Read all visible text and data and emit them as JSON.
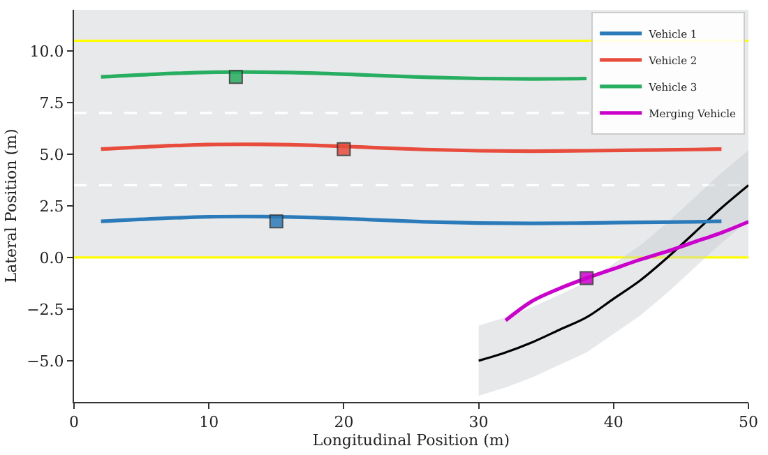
{
  "chart_data": {
    "type": "line",
    "xlabel": "Longitudinal Position (m)",
    "ylabel": "Lateral Position (m)",
    "xlim": [
      0,
      50
    ],
    "ylim": [
      -7,
      12
    ],
    "xticks": [
      0,
      10,
      20,
      30,
      40,
      50
    ],
    "yticks": [
      {
        "value": -5,
        "label": "−5.0"
      },
      {
        "value": -2.5,
        "label": "−2.5"
      },
      {
        "value": 0,
        "label": "0.0"
      },
      {
        "value": 2.5,
        "label": "2.5"
      },
      {
        "value": 5,
        "label": "5.0"
      },
      {
        "value": 7.5,
        "label": "7.5"
      },
      {
        "value": 10,
        "label": "10.0"
      }
    ],
    "grid": false,
    "legend": "top right",
    "line_style": "solid",
    "marker": "none",
    "bands": [
      {
        "axis": "y",
        "from": 0,
        "to": 12,
        "color": "#e8e9eb"
      }
    ],
    "ref_lines": [
      {
        "axis": "y",
        "value": 0,
        "color": "#ffff00",
        "line_style": "solid"
      },
      {
        "axis": "y",
        "value": 10.5,
        "color": "#ffff00",
        "line_style": "solid"
      },
      {
        "axis": "y",
        "value": 3.5,
        "color": "#ffffff",
        "line_style": "dashed"
      },
      {
        "axis": "y",
        "value": 7,
        "color": "#ffffff",
        "line_style": "dashed"
      }
    ],
    "series": [
      {
        "color": "#000000",
        "x": [
          30,
          32,
          34,
          36,
          38,
          40,
          42,
          44,
          46,
          48,
          50
        ],
        "values": [
          -5.0,
          -4.6,
          -4.1,
          -3.5,
          -2.9,
          -2.0,
          -1.1,
          0.0,
          1.2,
          2.4,
          3.5
        ],
        "lower": [
          -6.7,
          -6.3,
          -5.8,
          -5.2,
          -4.6,
          -3.7,
          -2.8,
          -1.7,
          -0.5,
          0.7,
          1.8
        ],
        "upper": [
          -3.3,
          -2.9,
          -2.4,
          -1.8,
          -1.2,
          -0.3,
          0.6,
          1.7,
          2.9,
          4.1,
          5.2
        ]
      },
      {
        "name": "Vehicle 1",
        "color": "#2b7bba",
        "x": [
          2,
          6,
          10,
          14,
          18,
          22,
          26,
          30,
          34,
          38,
          42,
          46,
          48
        ],
        "values": [
          1.75,
          1.88,
          1.97,
          1.98,
          1.93,
          1.83,
          1.73,
          1.67,
          1.65,
          1.67,
          1.7,
          1.73,
          1.75
        ]
      },
      {
        "name": "Vehicle 2",
        "color": "#e74c3c",
        "x": [
          2,
          6,
          10,
          14,
          18,
          22,
          26,
          30,
          34,
          38,
          42,
          46,
          48
        ],
        "values": [
          5.25,
          5.38,
          5.47,
          5.48,
          5.43,
          5.33,
          5.23,
          5.17,
          5.15,
          5.17,
          5.2,
          5.23,
          5.25
        ]
      },
      {
        "name": "Vehicle 3",
        "color": "#27ae60",
        "x": [
          2,
          6,
          10,
          14,
          18,
          22,
          26,
          30,
          34,
          38
        ],
        "values": [
          8.75,
          8.88,
          8.97,
          8.98,
          8.93,
          8.83,
          8.73,
          8.67,
          8.65,
          8.67
        ]
      },
      {
        "name": "Merging Vehicle",
        "color": "#cc00cc",
        "x": [
          32,
          34,
          36,
          38,
          40,
          42,
          44,
          46,
          48,
          50
        ],
        "values": [
          -3.05,
          -2.1,
          -1.5,
          -1.0,
          -0.55,
          -0.1,
          0.3,
          0.75,
          1.2,
          1.73
        ]
      },
      {
        "type": "scatter",
        "marker": "square",
        "color": "#27ae60",
        "x": [
          12
        ],
        "values": [
          8.75
        ]
      },
      {
        "type": "scatter",
        "marker": "square",
        "color": "#e74c3c",
        "x": [
          20
        ],
        "values": [
          5.25
        ]
      },
      {
        "type": "scatter",
        "marker": "square",
        "color": "#2b7bba",
        "x": [
          15
        ],
        "values": [
          1.75
        ]
      },
      {
        "type": "scatter",
        "marker": "square",
        "color": "#cc00cc",
        "x": [
          38
        ],
        "values": [
          -1.0
        ]
      }
    ]
  }
}
